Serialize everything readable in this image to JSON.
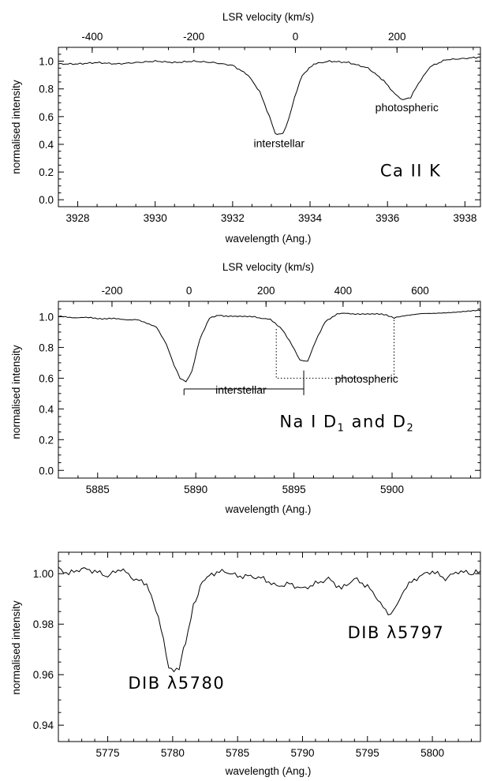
{
  "figure": {
    "panels": [
      {
        "id": "ca"
      },
      {
        "id": "na"
      },
      {
        "id": "dib"
      }
    ]
  },
  "chart_data": [
    {
      "type": "line",
      "xlabel": "wavelength (Ang.)",
      "x2label": "LSR velocity (km/s)",
      "ylabel": "normalised intensity",
      "xlim": [
        3927.5,
        3938.4
      ],
      "ylim": [
        -0.05,
        1.1
      ],
      "xticks": [
        3928,
        3930,
        3932,
        3934,
        3936,
        3938
      ],
      "x2ticks": [
        -400,
        -200,
        0,
        200
      ],
      "x2lim": [
        -466.6,
        364.2
      ],
      "yticks": [
        0.0,
        0.2,
        0.4,
        0.6,
        0.8,
        1.0
      ],
      "ytick_labels": [
        "0.0",
        "0.2",
        "0.4",
        "0.6",
        "0.8",
        "1.0"
      ],
      "grid": false,
      "series": [
        {
          "x": [
            3927.5,
            3928.0,
            3928.5,
            3929.0,
            3929.5,
            3930.0,
            3930.5,
            3931.0,
            3931.5,
            3932.0,
            3932.4,
            3932.7,
            3932.95,
            3933.1,
            3933.2,
            3933.3,
            3933.45,
            3933.6,
            3933.8,
            3934.1,
            3934.5,
            3935.0,
            3935.5,
            3935.9,
            3936.2,
            3936.4,
            3936.6,
            3936.8,
            3937.1,
            3937.5,
            3938.0,
            3938.4
          ],
          "y": [
            0.98,
            0.98,
            0.99,
            0.98,
            0.99,
            1.0,
            0.99,
            1.0,
            0.99,
            0.97,
            0.9,
            0.78,
            0.6,
            0.48,
            0.47,
            0.48,
            0.58,
            0.74,
            0.9,
            0.98,
            1.0,
            0.99,
            0.95,
            0.86,
            0.76,
            0.72,
            0.74,
            0.84,
            0.96,
            1.01,
            1.02,
            1.03
          ]
        }
      ],
      "annotations": [
        {
          "text": "interstellar",
          "x": 3933.2,
          "y": 0.38
        },
        {
          "text": "photospheric",
          "x": 3936.5,
          "y": 0.64
        },
        {
          "text": "Ca II K",
          "x": 3936.6,
          "y": 0.17
        }
      ]
    },
    {
      "type": "line",
      "xlabel": "wavelength (Ang.)",
      "x2label": "LSR velocity (km/s)",
      "ylabel": "normalised intensity",
      "xlim": [
        5883.0,
        5904.5
      ],
      "ylim": [
        -0.05,
        1.1
      ],
      "xticks": [
        5885,
        5890,
        5895,
        5900
      ],
      "x2ticks": [
        -200,
        0,
        200,
        400,
        600
      ],
      "x2lim": [
        -339.2,
        756.6
      ],
      "yticks": [
        0.0,
        0.2,
        0.4,
        0.6,
        0.8,
        1.0
      ],
      "ytick_labels": [
        "0.0",
        "0.2",
        "0.4",
        "0.6",
        "0.8",
        "1.0"
      ],
      "grid": false,
      "series": [
        {
          "x": [
            5883.0,
            5885.0,
            5887.0,
            5888.0,
            5888.5,
            5888.9,
            5889.2,
            5889.5,
            5889.8,
            5890.2,
            5890.7,
            5891.2,
            5892.0,
            5893.0,
            5893.8,
            5894.4,
            5894.9,
            5895.3,
            5895.7,
            5896.1,
            5896.6,
            5897.2,
            5898.0,
            5899.0,
            5899.7,
            5900.1,
            5900.5,
            5901.5,
            5903.0,
            5904.5
          ],
          "y": [
            1.0,
            0.99,
            0.98,
            0.93,
            0.82,
            0.68,
            0.6,
            0.58,
            0.64,
            0.85,
            0.99,
            1.01,
            1.0,
            1.0,
            0.98,
            0.92,
            0.82,
            0.72,
            0.71,
            0.84,
            0.97,
            1.02,
            1.02,
            1.02,
            1.01,
            0.99,
            1.0,
            1.02,
            1.03,
            1.04
          ]
        }
      ],
      "annotations": [
        {
          "text": "interstellar",
          "x": 5892.3,
          "y": 0.5
        },
        {
          "text": "photospheric",
          "x": 5898.7,
          "y": 0.57
        },
        {
          "text": "Na I D1 and D2",
          "x": 5897.7,
          "y": 0.28
        }
      ],
      "brackets": [
        {
          "style": "solid",
          "x_from": 5889.4,
          "x_to": 5895.5,
          "y": 0.53,
          "tick_down_to": 0.49,
          "tick_up_to": 0.65
        },
        {
          "style": "dotted",
          "x_from": 5894.1,
          "x_to": 5900.1,
          "y": 0.6,
          "top_left": 0.92,
          "top_right": 0.98
        }
      ]
    },
    {
      "type": "line",
      "xlabel": "wavelength (Ang.)",
      "ylabel": "normalised intensity",
      "xlim": [
        5771.2,
        5803.7
      ],
      "ylim": [
        0.9335,
        1.0085
      ],
      "xticks": [
        5775,
        5780,
        5785,
        5790,
        5795,
        5800
      ],
      "yticks": [
        0.94,
        0.96,
        0.98,
        1.0
      ],
      "ytick_labels": [
        "0.94",
        "0.96",
        "0.98",
        "1.00"
      ],
      "grid": false,
      "series": [
        {
          "x": [
            5771.2,
            5772.0,
            5773.0,
            5774.0,
            5775.0,
            5776.0,
            5777.0,
            5778.0,
            5778.7,
            5779.3,
            5779.7,
            5780.1,
            5780.5,
            5781.0,
            5781.6,
            5782.3,
            5783.0,
            5784.0,
            5785.0,
            5786.0,
            5787.0,
            5788.0,
            5789.0,
            5790.0,
            5791.0,
            5792.0,
            5793.0,
            5794.0,
            5795.0,
            5795.8,
            5796.4,
            5796.8,
            5797.3,
            5798.0,
            5799.0,
            5800.0,
            5801.0,
            5802.0,
            5803.0,
            5803.7
          ],
          "y": [
            1.002,
            1.0,
            1.002,
            1.001,
            0.999,
            1.002,
            0.998,
            0.996,
            0.986,
            0.974,
            0.963,
            0.961,
            0.963,
            0.973,
            0.987,
            0.997,
            1.0,
            1.001,
            0.999,
            0.999,
            0.998,
            0.995,
            0.996,
            0.994,
            0.996,
            0.998,
            0.994,
            0.998,
            0.995,
            0.99,
            0.985,
            0.984,
            0.988,
            0.995,
            0.999,
            1.001,
            0.998,
            1.001,
            1.0,
            1.001
          ]
        }
      ],
      "annotations": [
        {
          "text": "DIB λ5780",
          "x": 5780.3,
          "y": 0.9545
        },
        {
          "text": "DIB λ5797",
          "x": 5797.2,
          "y": 0.9745
        }
      ]
    }
  ],
  "colors": {
    "line": "#000000",
    "background": "#ffffff"
  }
}
